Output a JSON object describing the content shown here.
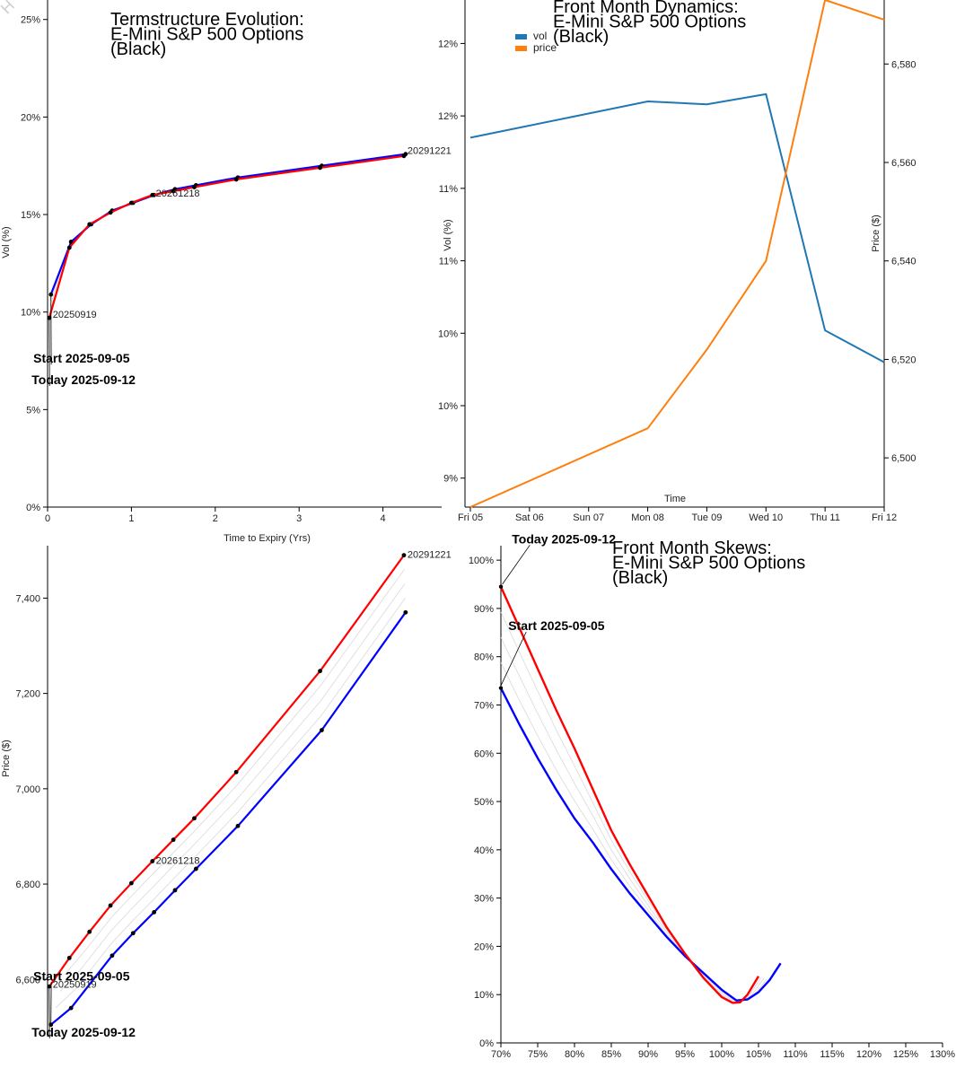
{
  "watermark": "H",
  "colors": {
    "series_a": "#0000ff",
    "series_b": "#ff0000",
    "vol": "#1f77b4",
    "price": "#ff7f0e",
    "ghost": "#d9d9d9",
    "axis": "#000000"
  },
  "chart_data": [
    {
      "id": "termstructure",
      "type": "line",
      "title": [
        "Termstructure Evolution:",
        "E-Mini S&P 500 Options",
        "(Black)"
      ],
      "xlabel": "Time to Expiry (Yrs)",
      "ylabel": "Vol (%)",
      "xlim": [
        0,
        4.7
      ],
      "ylim": [
        0,
        26
      ],
      "xticks": [
        0,
        1,
        2,
        3,
        4
      ],
      "xtick_labels": [
        "0",
        "1",
        "2",
        "3",
        "4"
      ],
      "yticks": [
        0,
        5,
        10,
        15,
        20,
        25
      ],
      "ytick_labels": [
        "0%",
        "5%",
        "10%",
        "15%",
        "20%",
        "25%"
      ],
      "series": [
        {
          "name": "Start 2025-09-05",
          "color": "#0000ff",
          "x": [
            0.04,
            0.28,
            0.52,
            0.77,
            1.02,
            1.27,
            1.52,
            1.77,
            2.27,
            3.27,
            4.27
          ],
          "y": [
            10.9,
            13.6,
            14.5,
            15.2,
            15.6,
            16.0,
            16.3,
            16.5,
            16.9,
            17.5,
            18.1
          ]
        },
        {
          "name": "Today 2025-09-12",
          "color": "#ff0000",
          "x": [
            0.02,
            0.26,
            0.5,
            0.75,
            1.0,
            1.25,
            1.5,
            1.75,
            2.25,
            3.25,
            4.25
          ],
          "y": [
            9.7,
            13.3,
            14.5,
            15.1,
            15.6,
            16.0,
            16.2,
            16.4,
            16.8,
            17.4,
            18.0
          ]
        }
      ],
      "labels": [
        {
          "text": "20250919",
          "x": 0.04,
          "y": 9.9
        },
        {
          "text": "20261218",
          "x": 1.27,
          "y": 16.1
        },
        {
          "text": "20291221",
          "x": 4.27,
          "y": 18.3
        }
      ],
      "annotations": [
        {
          "text": "Start 2025-09-05",
          "ax": -0.17,
          "ay": 7.4,
          "to_x": 0.04,
          "to_y": 10.8
        },
        {
          "text": "Today 2025-09-12",
          "ax": -0.19,
          "ay": 6.3,
          "to_x": 0.02,
          "to_y": 9.7
        }
      ]
    },
    {
      "id": "front-dynamics",
      "type": "line",
      "title": [
        "Front Month Dynamics:",
        "E-Mini S&P 500 Options",
        "(Black)"
      ],
      "xlabel": "Time",
      "ylabel": "Vol (%)",
      "y2label": "Price ($)",
      "categories": [
        "Fri 05",
        "Sat 06",
        "Sun 07",
        "Mon 08",
        "Tue 09",
        "Wed 10",
        "Thu 11",
        "Fri 12"
      ],
      "ylim": [
        8.8,
        12.3
      ],
      "yticks": [
        9.0,
        9.5,
        10.0,
        10.5,
        11.0,
        11.5,
        12.0
      ],
      "ytick_labels": [
        "9%",
        "10%",
        "10%",
        "11%",
        "11%",
        "12%",
        "12%"
      ],
      "y2lim": [
        6490,
        6593
      ],
      "y2ticks": [
        6500,
        6520,
        6540,
        6560,
        6580
      ],
      "y2tick_labels": [
        "6,500",
        "6,520",
        "6,540",
        "6,560",
        "6,580"
      ],
      "legend": [
        "vol",
        "price"
      ],
      "series": [
        {
          "name": "vol",
          "color": "#1f77b4",
          "axis": "left",
          "x": [
            0,
            3,
            4,
            5,
            6,
            7
          ],
          "y": [
            11.35,
            11.6,
            11.58,
            11.65,
            10.02,
            9.8
          ]
        },
        {
          "name": "price",
          "color": "#ff7f0e",
          "axis": "right",
          "x": [
            0,
            3,
            4,
            5,
            6,
            7
          ],
          "y": [
            6490,
            6506,
            6522,
            6540,
            6593,
            6589
          ]
        }
      ]
    },
    {
      "id": "forward-curve",
      "type": "line",
      "title": [],
      "xlabel": "",
      "ylabel": "Price ($)",
      "xlim": [
        0,
        4.7
      ],
      "ylim": [
        6480,
        7510
      ],
      "yticks": [
        6600,
        6800,
        7000,
        7200,
        7400
      ],
      "ytick_labels": [
        "6,600",
        "6,800",
        "7,000",
        "7,200",
        "7,400"
      ],
      "series": [
        {
          "name": "Start 2025-09-05",
          "color": "#0000ff",
          "x": [
            0.04,
            0.28,
            0.77,
            1.02,
            1.27,
            1.52,
            1.77,
            2.27,
            3.27,
            4.27
          ],
          "y": [
            6505,
            6540,
            6650,
            6697,
            6741,
            6787,
            6832,
            6922,
            7123,
            7370
          ]
        },
        {
          "name": "Today 2025-09-12",
          "color": "#ff0000",
          "x": [
            0.02,
            0.26,
            0.5,
            0.75,
            1.0,
            1.25,
            1.5,
            1.75,
            2.25,
            3.25,
            4.25
          ],
          "y": [
            6585,
            6645,
            6700,
            6755,
            6802,
            6848,
            6893,
            6938,
            7035,
            7247,
            7490
          ]
        }
      ],
      "labels": [
        {
          "text": "20250919",
          "x": 0.04,
          "y": 6590
        },
        {
          "text": "20261218",
          "x": 1.27,
          "y": 6850
        },
        {
          "text": "20291221",
          "x": 4.27,
          "y": 7492
        }
      ],
      "annotations": [
        {
          "text": "Start 2025-09-05",
          "ax": -0.17,
          "ay": 6598,
          "to_x": 0.04,
          "to_y": 6507
        },
        {
          "text": "Today 2025-09-12",
          "ax": -0.19,
          "ay": 6480,
          "to_x": 0.02,
          "to_y": 6580
        }
      ]
    },
    {
      "id": "front-skews",
      "type": "line",
      "title": [
        "Front Month Skews:",
        "E-Mini S&P 500 Options",
        "(Black)"
      ],
      "xlabel": "",
      "ylabel": "",
      "xlim": [
        70,
        130
      ],
      "ylim": [
        0,
        103
      ],
      "xticks": [
        70,
        75,
        80,
        85,
        90,
        95,
        100,
        105,
        110,
        115,
        120,
        125,
        130
      ],
      "xtick_labels": [
        "70%",
        "75%",
        "80%",
        "85%",
        "90%",
        "95%",
        "100%",
        "105%",
        "110%",
        "115%",
        "120%",
        "125%",
        "130%"
      ],
      "yticks": [
        0,
        10,
        20,
        30,
        40,
        50,
        60,
        70,
        80,
        90,
        100
      ],
      "ytick_labels": [
        "0%",
        "10%",
        "20%",
        "30%",
        "40%",
        "50%",
        "60%",
        "70%",
        "80%",
        "90%",
        "100%"
      ],
      "series": [
        {
          "name": "Start 2025-09-05",
          "color": "#0000ff",
          "x": [
            70.0,
            72.5,
            75.0,
            77.5,
            80.0,
            82.5,
            85.0,
            87.5,
            90.0,
            92.5,
            95.0,
            97.5,
            100.0,
            102.0,
            103.5,
            105.0,
            106.5,
            108.0
          ],
          "y": [
            73.5,
            66.0,
            59.0,
            52.5,
            46.5,
            41.5,
            36.0,
            31.0,
            26.5,
            22.0,
            18.0,
            14.5,
            11.0,
            8.8,
            9.0,
            10.5,
            13.0,
            16.5
          ]
        },
        {
          "name": "Today 2025-09-12",
          "color": "#ff0000",
          "x": [
            70.0,
            72.5,
            75.0,
            77.5,
            80.0,
            82.5,
            85.0,
            87.5,
            90.0,
            92.5,
            95.0,
            97.5,
            100.0,
            101.5,
            102.5,
            103.5,
            105.0
          ],
          "y": [
            94.5,
            86.0,
            77.5,
            69.0,
            61.0,
            52.5,
            44.0,
            37.0,
            30.5,
            24.0,
            18.5,
            13.5,
            9.5,
            8.3,
            8.4,
            10.0,
            13.8
          ]
        }
      ],
      "annotations": [
        {
          "text": "Start 2025-09-05",
          "ax": 71.0,
          "ay": 85.5,
          "to_x": 70.0,
          "to_y": 74.0
        },
        {
          "text": "Today 2025-09-12",
          "ax": 71.5,
          "ay": 103.5,
          "to_x": 70.2,
          "to_y": 95.0
        }
      ]
    }
  ]
}
